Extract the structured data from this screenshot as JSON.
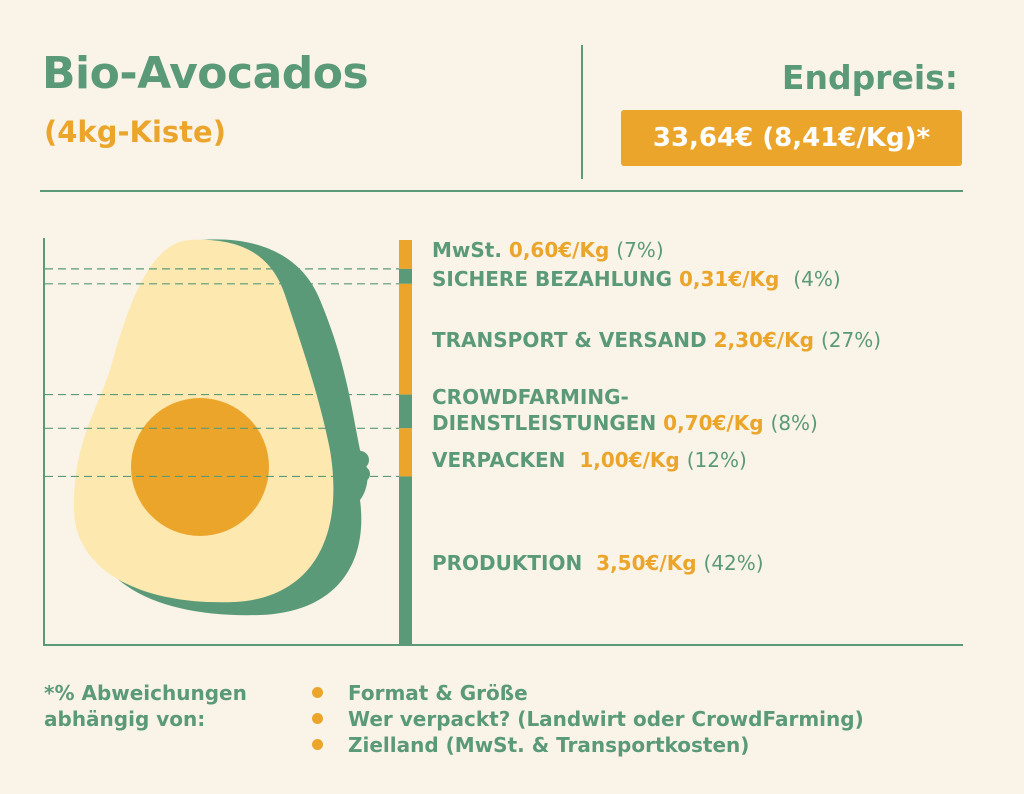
{
  "header": {
    "title": "Bio-Avocados",
    "subtitle": "(4kg-Kiste)",
    "price_label": "Endpreis:",
    "price_value": "33,64€ (8,41€/Kg)*"
  },
  "colors": {
    "background": "#f9f3e8",
    "green": "#5a9a78",
    "orange": "#eba52b",
    "avocado_flesh": "#fde8b0"
  },
  "chart_data": {
    "type": "bar",
    "stacked": true,
    "unit": "€/Kg",
    "total": 8.41,
    "segments": [
      {
        "label": "MwSt.",
        "value": 0.6,
        "value_text": "0,60€/Kg",
        "percent_text": "(7%)",
        "color": "#eba52b"
      },
      {
        "label": "SICHERE BEZAHLUNG",
        "value": 0.31,
        "value_text": "0,31€/Kg",
        "percent_text": "(4%)",
        "color": "#5a9a78"
      },
      {
        "label": "TRANSPORT & VERSAND",
        "value": 2.3,
        "value_text": "2,30€/Kg",
        "percent_text": "(27%)",
        "color": "#eba52b"
      },
      {
        "label": "CROWDFARMING- DIENSTLEISTUNGEN",
        "label_line1": "CROWDFARMING-",
        "label_line2": "DIENSTLEISTUNGEN",
        "value": 0.7,
        "value_text": "0,70€/Kg",
        "percent_text": "(8%)",
        "color": "#5a9a78"
      },
      {
        "label": "VERPACKEN",
        "value": 1.0,
        "value_text": "1,00€/Kg",
        "percent_text": "(12%)",
        "color": "#eba52b"
      },
      {
        "label": "PRODUKTION",
        "value": 3.5,
        "value_text": "3,50€/Kg",
        "percent_text": "(42%)",
        "color": "#5a9a78"
      }
    ]
  },
  "footer": {
    "note_line1": "*% Abweichungen",
    "note_line2": "abhängig von:",
    "factors": [
      "Format & Größe",
      "Wer verpackt? (Landwirt oder CrowdFarming)",
      "Zielland (MwSt. & Transportkosten)"
    ]
  }
}
